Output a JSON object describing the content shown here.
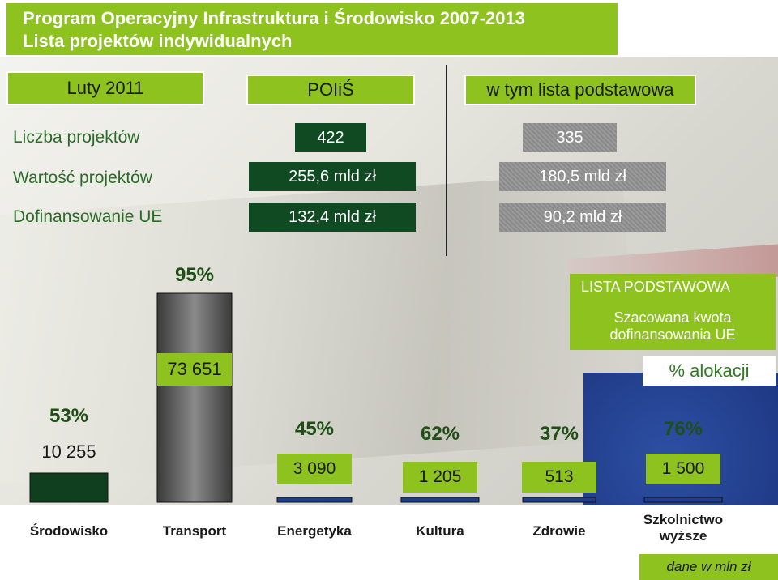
{
  "title": {
    "line1": "Program Operacyjny Infrastruktura i Środowisko 2007-2013",
    "line2": "Lista projektów indywidualnych"
  },
  "summary": {
    "date": "Luty 2011",
    "col1_header": "POIiŚ",
    "col2_header": "w tym lista podstawowa",
    "rows": [
      {
        "label": "Liczba projektów",
        "poiis": "422",
        "podstawowa": "335"
      },
      {
        "label": "Wartość projektów",
        "poiis": "255,6 mld zł",
        "podstawowa": "180,5 mld zł"
      },
      {
        "label": "Dofinansowanie UE",
        "poiis": "132,4 mld zł",
        "podstawowa": "90,2 mld zł"
      }
    ]
  },
  "legend": {
    "title": "LISTA PODSTAWOWA",
    "line1": "Szacowana kwota",
    "line2": "dofinansowania UE",
    "pct": "% alokacji"
  },
  "unit_note": "dane w mln zł",
  "colors": {
    "green": "#8dc21f",
    "dark_green": "#0f4a22",
    "bar_dark": "#0f3f1f",
    "bar_grey": "#6e6e6e",
    "blue": "#1e3f8f"
  },
  "chart_data": {
    "type": "bar",
    "categories": [
      "Środowisko",
      "Transport",
      "Energetyka",
      "Kultura",
      "Zdrowie",
      "Szkolnictwo wyższe"
    ],
    "values": [
      10255,
      73651,
      3090,
      1205,
      513,
      1500
    ],
    "value_labels": [
      "10 255",
      "73 651",
      "3 090",
      "1 205",
      "513",
      "1 500"
    ],
    "percent_labels": [
      "53%",
      "95%",
      "45%",
      "62%",
      "37%",
      "76%"
    ],
    "ylabel": "",
    "unit": "dane w mln zł"
  }
}
